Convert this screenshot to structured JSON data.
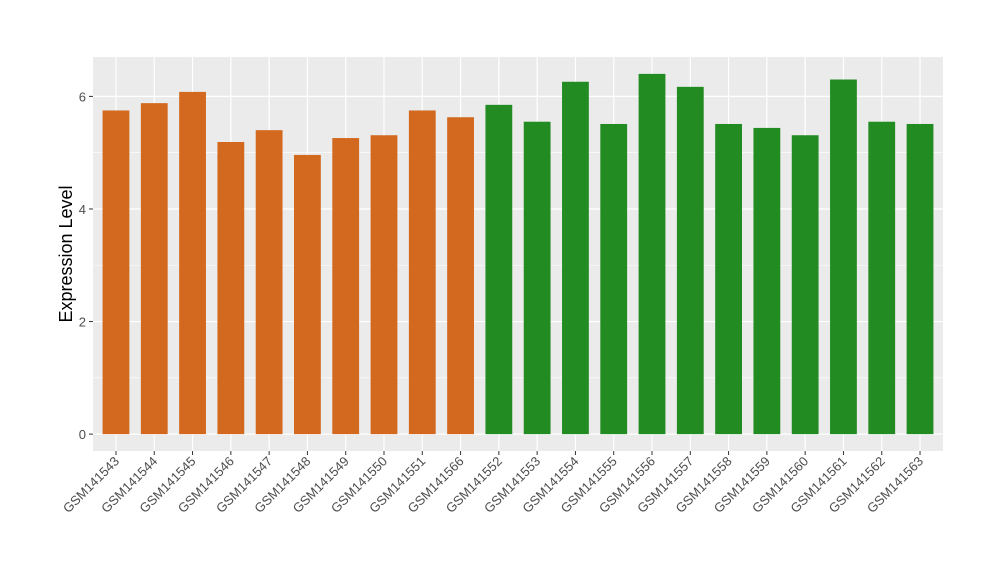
{
  "chart_data": {
    "type": "bar",
    "title": "",
    "xlabel": "",
    "ylabel": "Expression Level",
    "ylim": [
      -0.3,
      6.7
    ],
    "yticks": [
      0,
      2,
      4,
      6
    ],
    "grid": true,
    "legend": "none",
    "background": "#ebebeb",
    "gridline_color": "#ffffff",
    "categories": [
      "GSM141543",
      "GSM141544",
      "GSM141545",
      "GSM141546",
      "GSM141547",
      "GSM141548",
      "GSM141549",
      "GSM141550",
      "GSM141551",
      "GSM141566",
      "GSM141552",
      "GSM141553",
      "GSM141554",
      "GSM141555",
      "GSM141556",
      "GSM141557",
      "GSM141558",
      "GSM141559",
      "GSM141560",
      "GSM141561",
      "GSM141562",
      "GSM141563"
    ],
    "values": [
      5.75,
      5.88,
      6.08,
      5.19,
      5.4,
      4.96,
      5.26,
      5.31,
      5.75,
      5.63,
      5.85,
      5.55,
      6.26,
      5.51,
      6.4,
      6.17,
      5.51,
      5.44,
      5.31,
      6.3,
      5.55,
      5.51
    ],
    "colors": [
      "#d2691e",
      "#d2691e",
      "#d2691e",
      "#d2691e",
      "#d2691e",
      "#d2691e",
      "#d2691e",
      "#d2691e",
      "#d2691e",
      "#d2691e",
      "#228b22",
      "#228b22",
      "#228b22",
      "#228b22",
      "#228b22",
      "#228b22",
      "#228b22",
      "#228b22",
      "#228b22",
      "#228b22",
      "#228b22",
      "#228b22"
    ]
  }
}
